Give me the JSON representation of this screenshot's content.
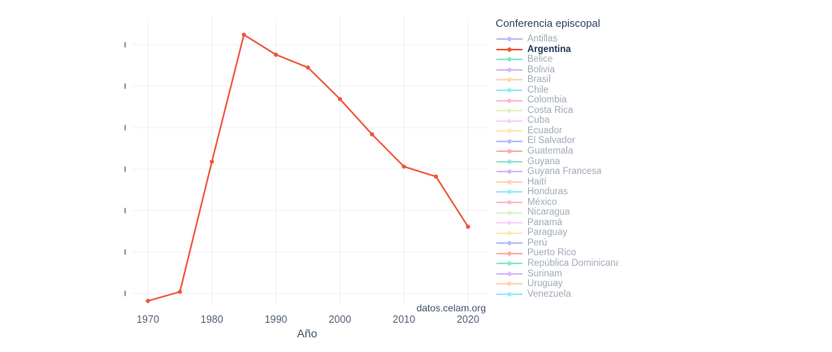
{
  "chart_data": {
    "type": "line",
    "title": "",
    "xlabel": "Año",
    "ylabel": "",
    "x": [
      1970,
      1975,
      1980,
      1985,
      1990,
      1995,
      2000,
      2005,
      2010,
      2015,
      2020
    ],
    "series": [
      {
        "name": "Argentina",
        "color": "#EF553B",
        "y_gridline_units": [
          0.82,
          1.04,
          4.18,
          7.24,
          6.76,
          6.45,
          5.69,
          4.84,
          4.06,
          3.82,
          2.61
        ]
      }
    ],
    "x_tick_labels": [
      "1970",
      "1980",
      "1990",
      "2000",
      "2010",
      "2020"
    ],
    "y_tick_labels_note": "y-axis tick labels are clipped/illegible in the screenshot; y values expressed in relative gridline units (bottom gridline = 1, top gridline = 7, 7 gridlines total)",
    "ylim_gridline_units": [
      0.73,
      7.65
    ],
    "grid": true,
    "legend_position": "right",
    "source": "datos.celam.org"
  },
  "legend": {
    "title": "Conferencia episcopal",
    "active_item": "Argentina",
    "items": [
      {
        "label": "Antillas",
        "color": "#636efa",
        "state": "dimmed"
      },
      {
        "label": "Argentina",
        "color": "#EF553B",
        "state": "active"
      },
      {
        "label": "Belice",
        "color": "#00cc96",
        "state": "dimmed"
      },
      {
        "label": "Bolivia",
        "color": "#ab63fa",
        "state": "dimmed"
      },
      {
        "label": "Brasil",
        "color": "#FFA15A",
        "state": "dimmed"
      },
      {
        "label": "Chile",
        "color": "#19d3f3",
        "state": "dimmed"
      },
      {
        "label": "Colombia",
        "color": "#FF6692",
        "state": "dimmed"
      },
      {
        "label": "Costa Rica",
        "color": "#B6E880",
        "state": "dimmed"
      },
      {
        "label": "Cuba",
        "color": "#FF97FF",
        "state": "dimmed"
      },
      {
        "label": "Ecuador",
        "color": "#FECB52",
        "state": "dimmed"
      },
      {
        "label": "El Salvador",
        "color": "#636efa",
        "state": "dimmed"
      },
      {
        "label": "Guatemala",
        "color": "#EF553B",
        "state": "dimmed"
      },
      {
        "label": "Guyana",
        "color": "#00cc96",
        "state": "dimmed"
      },
      {
        "label": "Guyana Francesa",
        "color": "#ab63fa",
        "state": "dimmed"
      },
      {
        "label": "Haití",
        "color": "#FFA15A",
        "state": "dimmed"
      },
      {
        "label": "Honduras",
        "color": "#19d3f3",
        "state": "dimmed"
      },
      {
        "label": "México",
        "color": "#FF6692",
        "state": "dimmed"
      },
      {
        "label": "Nicaragua",
        "color": "#B6E880",
        "state": "dimmed"
      },
      {
        "label": "Panamá",
        "color": "#FF97FF",
        "state": "dimmed"
      },
      {
        "label": "Paraguay",
        "color": "#FECB52",
        "state": "dimmed"
      },
      {
        "label": "Perú",
        "color": "#636efa",
        "state": "dimmed"
      },
      {
        "label": "Puerto Rico",
        "color": "#EF553B",
        "state": "dimmed"
      },
      {
        "label": "República Dominicana",
        "color": "#00cc96",
        "state": "dimmed"
      },
      {
        "label": "Surinam",
        "color": "#ab63fa",
        "state": "dimmed"
      },
      {
        "label": "Uruguay",
        "color": "#FFA15A",
        "state": "dimmed"
      },
      {
        "label": "Venezuela",
        "color": "#19d3f3",
        "state": "dimmed"
      }
    ]
  },
  "colors": {
    "grid": "#eef0f4",
    "tick_text": "#54617a",
    "axis_title_text": "#44526b",
    "legend_title_text": "#2a3f5f",
    "background": "#ffffff"
  }
}
